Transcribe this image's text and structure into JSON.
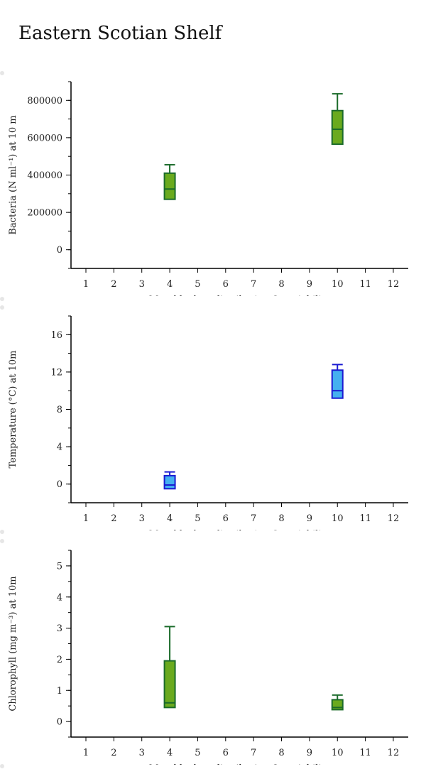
{
  "page_title": "Eastern Scotian Shelf",
  "chart_data": [
    {
      "type": "box",
      "ylabel": "Bacteria (N ml⁻¹) at 10 m",
      "xlabel": "Monthly data distribution & variability",
      "categories": [
        "1",
        "2",
        "3",
        "4",
        "5",
        "6",
        "7",
        "8",
        "9",
        "10",
        "11",
        "12"
      ],
      "yticks": [
        0,
        200000,
        400000,
        600000,
        800000
      ],
      "ytick_labels": [
        "0",
        "200000",
        "400000",
        "600000",
        "800000"
      ],
      "ylim": [
        -100000,
        900000
      ],
      "minor_step": 100000,
      "fill": "#6aaa1e",
      "stroke": "#1b6b2a",
      "boxes": [
        {
          "month": 4,
          "min": 270000,
          "q1": 270000,
          "median": 325000,
          "q3": 410000,
          "max": 455000
        },
        {
          "month": 10,
          "min": 565000,
          "q1": 565000,
          "median": 645000,
          "q3": 745000,
          "max": 835000
        }
      ]
    },
    {
      "type": "box",
      "ylabel": "Temperature (°C) at 10m",
      "xlabel": "Monthly data distribution & variability",
      "categories": [
        "1",
        "2",
        "3",
        "4",
        "5",
        "6",
        "7",
        "8",
        "9",
        "10",
        "11",
        "12"
      ],
      "yticks": [
        0,
        4,
        8,
        12,
        16
      ],
      "ytick_labels": [
        "0",
        "4",
        "8",
        "12",
        "16"
      ],
      "ylim": [
        -2,
        18
      ],
      "minor_step": 2,
      "fill": "#45b0f0",
      "stroke": "#1a1ad2",
      "boxes": [
        {
          "month": 4,
          "min": -0.5,
          "q1": -0.5,
          "median": -0.1,
          "q3": 0.9,
          "max": 1.3
        },
        {
          "month": 10,
          "min": 9.2,
          "q1": 9.2,
          "median": 10.0,
          "q3": 12.2,
          "max": 12.8
        }
      ]
    },
    {
      "type": "box",
      "ylabel": "Chlorophyll (mg m⁻³) at 10m",
      "xlabel": "Monthly data distribution & variability",
      "categories": [
        "1",
        "2",
        "3",
        "4",
        "5",
        "6",
        "7",
        "8",
        "9",
        "10",
        "11",
        "12"
      ],
      "yticks": [
        0,
        1,
        2,
        3,
        4,
        5
      ],
      "ytick_labels": [
        "0",
        "1",
        "2",
        "3",
        "4",
        "5"
      ],
      "ylim": [
        -0.5,
        5.5
      ],
      "minor_step": 0.5,
      "fill": "#6aaa1e",
      "stroke": "#1b6b2a",
      "boxes": [
        {
          "month": 4,
          "min": 0.45,
          "q1": 0.45,
          "median": 0.6,
          "q3": 1.95,
          "max": 3.05
        },
        {
          "month": 10,
          "min": 0.38,
          "q1": 0.38,
          "median": 0.45,
          "q3": 0.7,
          "max": 0.85
        }
      ]
    }
  ]
}
